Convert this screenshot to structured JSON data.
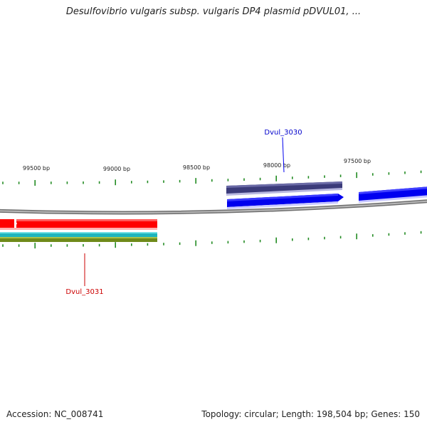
{
  "header": {
    "title": "Desulfovibrio vulgaris subsp. vulgaris DP4 plasmid pDVUL01, ..."
  },
  "ruler": {
    "labels": [
      "99500 bp",
      "99000 bp",
      "98500 bp",
      "98000 bp",
      "97500 bp"
    ]
  },
  "genes": [
    {
      "name": "Dvul_3030",
      "color": "#0000ee"
    },
    {
      "name": "Dvul_3031",
      "color": "#cc0000"
    }
  ],
  "colors": {
    "backbone": "#888888",
    "tick": "#228b22",
    "feature_red": "#ff0000",
    "feature_cyan": "#22c0c8",
    "feature_olive": "#7a9a20",
    "feature_purple": "#4a4a8a",
    "feature_blue": "#0000ff"
  },
  "footer": {
    "accession": "Accession: NC_008741",
    "summary": "Topology: circular; Length: 198,504 bp; Genes: 150"
  }
}
